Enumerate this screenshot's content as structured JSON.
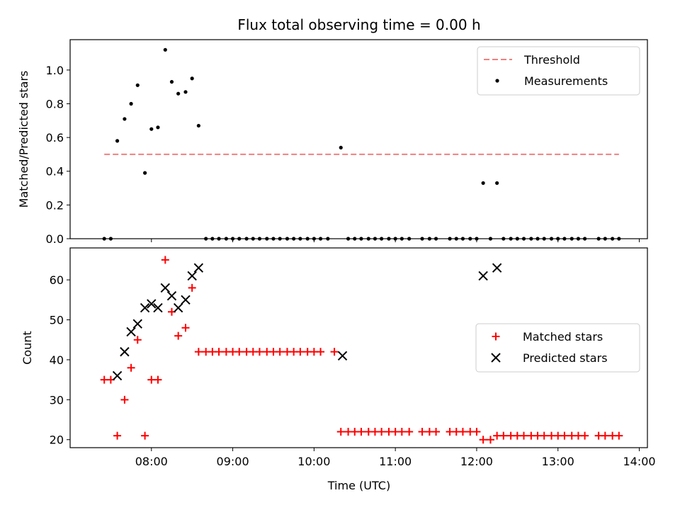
{
  "chart_data": {
    "title": "Flux total observing time = 0.00 h",
    "x_axis": {
      "label": "Time (UTC)",
      "unit": "hours (UTC)",
      "range": [
        7.0,
        14.1
      ],
      "ticks": [
        {
          "v": 8,
          "label": "08:00"
        },
        {
          "v": 9,
          "label": "09:00"
        },
        {
          "v": 10,
          "label": "10:00"
        },
        {
          "v": 11,
          "label": "11:00"
        },
        {
          "v": 12,
          "label": "12:00"
        },
        {
          "v": 13,
          "label": "13:00"
        },
        {
          "v": 14,
          "label": "14:00"
        }
      ]
    },
    "panels": [
      {
        "type": "scatter",
        "ylabel": "Matched/Predicted stars",
        "ylim": [
          0,
          1.18
        ],
        "yticks": [
          {
            "v": 0,
            "label": "0.0"
          },
          {
            "v": 0.2,
            "label": "0.2"
          },
          {
            "v": 0.4,
            "label": "0.4"
          },
          {
            "v": 0.6,
            "label": "0.6"
          },
          {
            "v": 0.8,
            "label": "0.8"
          },
          {
            "v": 1.0,
            "label": "1.0"
          }
        ],
        "legend_position": "top-right",
        "threshold": {
          "name": "Threshold",
          "value": 0.5,
          "x_range": [
            7.42,
            13.75
          ],
          "color": "#f08080"
        },
        "series": [
          {
            "name": "Measurements",
            "color": "#000000",
            "marker": "dot",
            "points": [
              [
                7.42,
                0.0
              ],
              [
                7.5,
                0.0
              ],
              [
                7.58,
                0.58
              ],
              [
                7.67,
                0.71
              ],
              [
                7.75,
                0.8
              ],
              [
                7.83,
                0.91
              ],
              [
                7.92,
                0.39
              ],
              [
                8.0,
                0.65
              ],
              [
                8.08,
                0.66
              ],
              [
                8.17,
                1.12
              ],
              [
                8.25,
                0.93
              ],
              [
                8.33,
                0.86
              ],
              [
                8.42,
                0.87
              ],
              [
                8.5,
                0.95
              ],
              [
                8.58,
                0.67
              ],
              [
                8.67,
                0.0
              ],
              [
                8.75,
                0.0
              ],
              [
                8.83,
                0.0
              ],
              [
                8.92,
                0.0
              ],
              [
                9.0,
                0.0
              ],
              [
                9.08,
                0.0
              ],
              [
                9.17,
                0.0
              ],
              [
                9.25,
                0.0
              ],
              [
                9.33,
                0.0
              ],
              [
                9.42,
                0.0
              ],
              [
                9.5,
                0.0
              ],
              [
                9.58,
                0.0
              ],
              [
                9.67,
                0.0
              ],
              [
                9.75,
                0.0
              ],
              [
                9.83,
                0.0
              ],
              [
                9.92,
                0.0
              ],
              [
                10.0,
                0.0
              ],
              [
                10.08,
                0.0
              ],
              [
                10.17,
                0.0
              ],
              [
                10.33,
                0.54
              ],
              [
                10.42,
                0.0
              ],
              [
                10.5,
                0.0
              ],
              [
                10.58,
                0.0
              ],
              [
                10.67,
                0.0
              ],
              [
                10.75,
                0.0
              ],
              [
                10.83,
                0.0
              ],
              [
                10.92,
                0.0
              ],
              [
                11.0,
                0.0
              ],
              [
                11.08,
                0.0
              ],
              [
                11.17,
                0.0
              ],
              [
                11.33,
                0.0
              ],
              [
                11.42,
                0.0
              ],
              [
                11.5,
                0.0
              ],
              [
                11.67,
                0.0
              ],
              [
                11.75,
                0.0
              ],
              [
                11.83,
                0.0
              ],
              [
                11.92,
                0.0
              ],
              [
                12.0,
                0.0
              ],
              [
                12.08,
                0.33
              ],
              [
                12.17,
                0.0
              ],
              [
                12.25,
                0.33
              ],
              [
                12.33,
                0.0
              ],
              [
                12.42,
                0.0
              ],
              [
                12.5,
                0.0
              ],
              [
                12.58,
                0.0
              ],
              [
                12.67,
                0.0
              ],
              [
                12.75,
                0.0
              ],
              [
                12.83,
                0.0
              ],
              [
                12.92,
                0.0
              ],
              [
                13.0,
                0.0
              ],
              [
                13.08,
                0.0
              ],
              [
                13.17,
                0.0
              ],
              [
                13.25,
                0.0
              ],
              [
                13.33,
                0.0
              ],
              [
                13.5,
                0.0
              ],
              [
                13.58,
                0.0
              ],
              [
                13.67,
                0.0
              ],
              [
                13.75,
                0.0
              ]
            ]
          }
        ]
      },
      {
        "type": "scatter",
        "ylabel": "Count",
        "ylim": [
          18,
          68
        ],
        "yticks": [
          {
            "v": 20,
            "label": "20"
          },
          {
            "v": 30,
            "label": "30"
          },
          {
            "v": 40,
            "label": "40"
          },
          {
            "v": 50,
            "label": "50"
          },
          {
            "v": 60,
            "label": "60"
          }
        ],
        "legend_position": "center-right",
        "series": [
          {
            "name": "Matched stars",
            "color": "#ff0000",
            "marker": "plus",
            "points": [
              [
                7.42,
                35
              ],
              [
                7.5,
                35
              ],
              [
                7.58,
                21
              ],
              [
                7.67,
                30
              ],
              [
                7.75,
                38
              ],
              [
                7.83,
                45
              ],
              [
                7.92,
                21
              ],
              [
                8.0,
                35
              ],
              [
                8.08,
                35
              ],
              [
                8.17,
                65
              ],
              [
                8.25,
                52
              ],
              [
                8.33,
                46
              ],
              [
                8.42,
                48
              ],
              [
                8.5,
                58
              ],
              [
                8.58,
                42
              ],
              [
                8.67,
                42
              ],
              [
                8.75,
                42
              ],
              [
                8.83,
                42
              ],
              [
                8.92,
                42
              ],
              [
                9.0,
                42
              ],
              [
                9.08,
                42
              ],
              [
                9.17,
                42
              ],
              [
                9.25,
                42
              ],
              [
                9.33,
                42
              ],
              [
                9.42,
                42
              ],
              [
                9.5,
                42
              ],
              [
                9.58,
                42
              ],
              [
                9.67,
                42
              ],
              [
                9.75,
                42
              ],
              [
                9.83,
                42
              ],
              [
                9.92,
                42
              ],
              [
                10.0,
                42
              ],
              [
                10.08,
                42
              ],
              [
                10.25,
                42
              ],
              [
                10.33,
                22
              ],
              [
                10.42,
                22
              ],
              [
                10.5,
                22
              ],
              [
                10.58,
                22
              ],
              [
                10.67,
                22
              ],
              [
                10.75,
                22
              ],
              [
                10.83,
                22
              ],
              [
                10.92,
                22
              ],
              [
                11.0,
                22
              ],
              [
                11.08,
                22
              ],
              [
                11.17,
                22
              ],
              [
                11.33,
                22
              ],
              [
                11.42,
                22
              ],
              [
                11.5,
                22
              ],
              [
                11.67,
                22
              ],
              [
                11.75,
                22
              ],
              [
                11.83,
                22
              ],
              [
                11.92,
                22
              ],
              [
                12.0,
                22
              ],
              [
                12.08,
                20
              ],
              [
                12.17,
                20
              ],
              [
                12.25,
                21
              ],
              [
                12.33,
                21
              ],
              [
                12.42,
                21
              ],
              [
                12.5,
                21
              ],
              [
                12.58,
                21
              ],
              [
                12.67,
                21
              ],
              [
                12.75,
                21
              ],
              [
                12.83,
                21
              ],
              [
                12.92,
                21
              ],
              [
                13.0,
                21
              ],
              [
                13.08,
                21
              ],
              [
                13.17,
                21
              ],
              [
                13.25,
                21
              ],
              [
                13.33,
                21
              ],
              [
                13.5,
                21
              ],
              [
                13.58,
                21
              ],
              [
                13.67,
                21
              ],
              [
                13.75,
                21
              ]
            ]
          },
          {
            "name": "Predicted stars",
            "color": "#000000",
            "marker": "x",
            "points": [
              [
                7.58,
                36
              ],
              [
                7.67,
                42
              ],
              [
                7.75,
                47
              ],
              [
                7.83,
                49
              ],
              [
                7.92,
                53
              ],
              [
                8.0,
                54
              ],
              [
                8.08,
                53
              ],
              [
                8.17,
                58
              ],
              [
                8.25,
                56
              ],
              [
                8.33,
                53
              ],
              [
                8.42,
                55
              ],
              [
                8.5,
                61
              ],
              [
                8.58,
                63
              ],
              [
                10.35,
                41
              ],
              [
                12.08,
                61
              ],
              [
                12.25,
                63
              ]
            ]
          }
        ]
      }
    ]
  }
}
